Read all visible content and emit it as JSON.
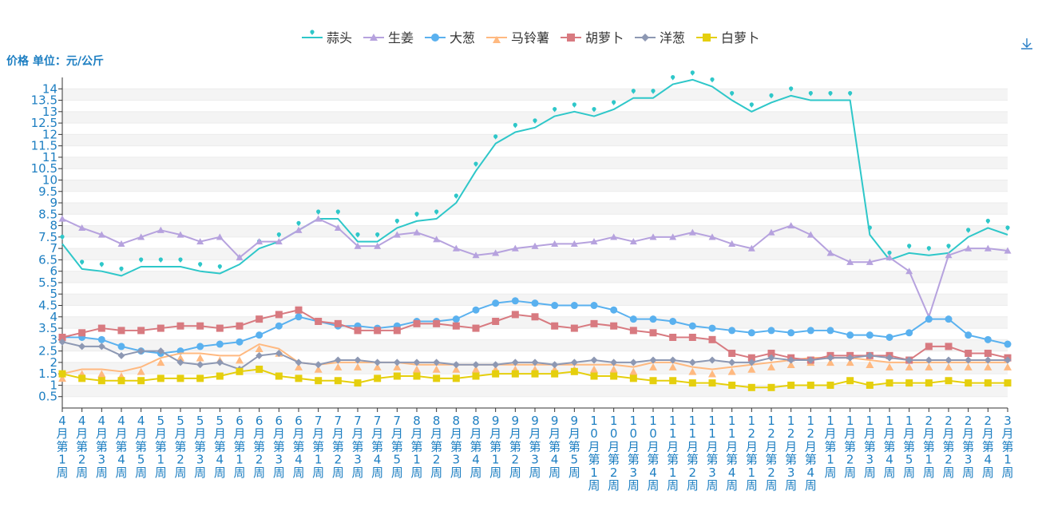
{
  "chart_data": {
    "type": "line",
    "ylabel": "价格 单位：元/公斤",
    "ylim": [
      0,
      14.5
    ],
    "yticks": [
      0.5,
      1,
      1.5,
      2,
      2.5,
      3,
      3.5,
      4,
      4.5,
      5,
      5.5,
      6,
      6.5,
      7,
      7.5,
      8,
      8.5,
      9,
      9.5,
      10,
      10.5,
      11,
      11.5,
      12,
      12.5,
      13,
      13.5,
      14
    ],
    "ytick_labels": [
      "0.5",
      "1",
      "1.5",
      "2",
      "2.5",
      "3",
      "3.5",
      "4",
      "4.5",
      "5",
      "5.5",
      "6",
      "6.5",
      "7",
      "7.5",
      "8",
      "8.5",
      "9",
      "9.5",
      "10",
      "10.5",
      "11",
      "11.5",
      "12",
      "12.5",
      "13",
      "13.5",
      "14"
    ],
    "categories": [
      "4月第1周",
      "4月第2周",
      "4月第3周",
      "4月第4周",
      "4月第5周",
      "5月第1周",
      "5月第2周",
      "5月第3周",
      "5月第4周",
      "6月第1周",
      "6月第2周",
      "6月第3周",
      "6月第4周",
      "7月第1周",
      "7月第2周",
      "7月第3周",
      "7月第4周",
      "7月第5周",
      "8月第1周",
      "8月第2周",
      "8月第3周",
      "8月第4周",
      "9月第1周",
      "9月第2周",
      "9月第3周",
      "9月第4周",
      "9月第5周",
      "10月第1周",
      "10月第2周",
      "10月第3周",
      "10月第4周",
      "11月第1周",
      "11月第2周",
      "11月第3周",
      "11月第4周",
      "12月第1周",
      "12月第2周",
      "12月第3周",
      "12月第4周",
      "1月第1周",
      "1月第2周",
      "1月第3周",
      "1月第4周",
      "1月第5周",
      "2月第1周",
      "2月第2周",
      "2月第3周",
      "2月第4周",
      "3月第1周"
    ],
    "legend_position": "top-center",
    "series": [
      {
        "name": "蒜头",
        "color": "#2ec7c9",
        "marker": "pin",
        "values": [
          7.2,
          6.1,
          6.0,
          5.8,
          6.2,
          6.2,
          6.2,
          6.0,
          5.9,
          6.3,
          7.0,
          7.3,
          7.8,
          8.3,
          8.3,
          7.3,
          7.3,
          7.9,
          8.2,
          8.3,
          9.0,
          10.4,
          11.6,
          12.1,
          12.3,
          12.8,
          13.0,
          12.8,
          13.1,
          13.6,
          13.6,
          14.2,
          14.4,
          14.1,
          13.5,
          13.0,
          13.4,
          13.7,
          13.5,
          13.5,
          13.5,
          7.6,
          6.5,
          6.8,
          6.7,
          6.8,
          7.5,
          7.9,
          7.6
        ]
      },
      {
        "name": "生姜",
        "color": "#b6a2de",
        "marker": "triangle",
        "values": [
          8.3,
          7.9,
          7.6,
          7.2,
          7.5,
          7.8,
          7.6,
          7.3,
          7.5,
          6.6,
          7.3,
          7.3,
          7.8,
          8.3,
          7.9,
          7.1,
          7.1,
          7.6,
          7.7,
          7.4,
          7.0,
          6.7,
          6.8,
          7.0,
          7.1,
          7.2,
          7.2,
          7.3,
          7.5,
          7.3,
          7.5,
          7.5,
          7.7,
          7.5,
          7.2,
          7.0,
          7.7,
          8.0,
          7.6,
          6.8,
          6.4,
          6.4,
          6.6,
          6.0,
          4.0,
          6.7,
          7.0,
          7.0,
          6.9
        ]
      },
      {
        "name": "大葱",
        "color": "#5ab1ef",
        "marker": "circle",
        "values": [
          3.1,
          3.1,
          3.0,
          2.7,
          2.5,
          2.4,
          2.5,
          2.7,
          2.8,
          2.9,
          3.2,
          3.6,
          4.0,
          3.8,
          3.6,
          3.6,
          3.5,
          3.6,
          3.8,
          3.8,
          3.9,
          4.3,
          4.6,
          4.7,
          4.6,
          4.5,
          4.5,
          4.5,
          4.3,
          3.9,
          3.9,
          3.8,
          3.6,
          3.5,
          3.4,
          3.3,
          3.4,
          3.3,
          3.4,
          3.4,
          3.2,
          3.2,
          3.1,
          3.3,
          3.9,
          3.9,
          3.2,
          3.0,
          2.8
        ]
      },
      {
        "name": "马铃薯",
        "color": "#ffb980",
        "marker": "triangle",
        "values": [
          1.5,
          1.7,
          1.7,
          1.6,
          1.8,
          2.2,
          2.4,
          2.4,
          2.3,
          2.3,
          2.8,
          2.6,
          2.0,
          1.9,
          2.0,
          2.0,
          2.0,
          2.0,
          1.9,
          1.9,
          1.9,
          1.9,
          1.9,
          1.9,
          1.9,
          1.9,
          1.9,
          1.9,
          1.9,
          1.8,
          2.0,
          2.0,
          1.8,
          1.7,
          1.8,
          1.9,
          2.0,
          2.1,
          2.2,
          2.2,
          2.2,
          2.1,
          2.0,
          2.0,
          2.0,
          2.0,
          2.0,
          2.0,
          2.0
        ]
      },
      {
        "name": "胡萝卜",
        "color": "#d87a80",
        "marker": "square",
        "values": [
          3.1,
          3.3,
          3.5,
          3.4,
          3.4,
          3.5,
          3.6,
          3.6,
          3.5,
          3.6,
          3.9,
          4.1,
          4.3,
          3.8,
          3.7,
          3.4,
          3.4,
          3.4,
          3.7,
          3.7,
          3.6,
          3.5,
          3.8,
          4.1,
          4.0,
          3.6,
          3.5,
          3.7,
          3.6,
          3.4,
          3.3,
          3.1,
          3.1,
          3.0,
          2.4,
          2.2,
          2.4,
          2.2,
          2.1,
          2.3,
          2.3,
          2.3,
          2.3,
          2.1,
          2.7,
          2.7,
          2.4,
          2.4,
          2.2
        ]
      },
      {
        "name": "洋葱",
        "color": "#8d98b3",
        "marker": "diamond",
        "values": [
          2.9,
          2.7,
          2.7,
          2.3,
          2.5,
          2.5,
          2.0,
          1.9,
          2.0,
          1.7,
          2.3,
          2.4,
          2.0,
          1.9,
          2.1,
          2.1,
          2.0,
          2.0,
          2.0,
          2.0,
          1.9,
          1.9,
          1.9,
          2.0,
          2.0,
          1.9,
          2.0,
          2.1,
          2.0,
          2.0,
          2.1,
          2.1,
          2.0,
          2.1,
          2.0,
          2.0,
          2.2,
          2.1,
          2.1,
          2.2,
          2.2,
          2.3,
          2.2,
          2.1,
          2.1,
          2.1,
          2.1,
          2.1,
          2.1
        ]
      },
      {
        "name": "白萝卜",
        "color": "#e5cf0d",
        "marker": "square",
        "values": [
          1.5,
          1.3,
          1.2,
          1.2,
          1.2,
          1.3,
          1.3,
          1.3,
          1.4,
          1.6,
          1.7,
          1.4,
          1.3,
          1.2,
          1.2,
          1.1,
          1.3,
          1.4,
          1.4,
          1.3,
          1.3,
          1.4,
          1.5,
          1.5,
          1.5,
          1.5,
          1.6,
          1.4,
          1.4,
          1.3,
          1.2,
          1.2,
          1.1,
          1.1,
          1.0,
          0.9,
          0.9,
          1.0,
          1.0,
          1.0,
          1.2,
          1.0,
          1.1,
          1.1,
          1.1,
          1.2,
          1.1,
          1.1,
          1.1
        ]
      }
    ]
  },
  "icons": {
    "download": "download-icon"
  }
}
